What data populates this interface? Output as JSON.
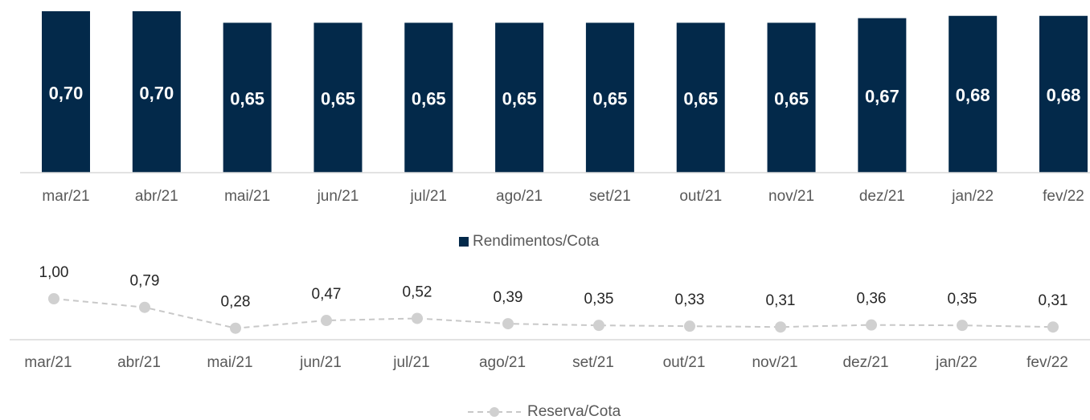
{
  "chart_data": [
    {
      "type": "bar",
      "categories": [
        "mar/21",
        "abr/21",
        "mai/21",
        "jun/21",
        "jul/21",
        "ago/21",
        "set/21",
        "out/21",
        "nov/21",
        "dez/21",
        "jan/22",
        "fev/22"
      ],
      "series": [
        {
          "name": "Rendimentos/Cota",
          "color": "#03294a",
          "values": [
            0.7,
            0.7,
            0.65,
            0.65,
            0.65,
            0.65,
            0.65,
            0.65,
            0.65,
            0.67,
            0.68,
            0.68
          ],
          "value_labels": [
            "0,70",
            "0,70",
            "0,65",
            "0,65",
            "0,65",
            "0,65",
            "0,65",
            "0,65",
            "0,65",
            "0,67",
            "0,68",
            "0,68"
          ]
        }
      ]
    },
    {
      "type": "line",
      "categories": [
        "mar/21",
        "abr/21",
        "mai/21",
        "jun/21",
        "jul/21",
        "ago/21",
        "set/21",
        "out/21",
        "nov/21",
        "dez/21",
        "jan/22",
        "fev/22"
      ],
      "series": [
        {
          "name": "Reserva/Cota",
          "color": "#c8c8c8",
          "values": [
            1.0,
            0.79,
            0.28,
            0.47,
            0.52,
            0.39,
            0.35,
            0.33,
            0.31,
            0.36,
            0.35,
            0.31
          ],
          "value_labels": [
            "1,00",
            "0,79",
            "0,28",
            "0,47",
            "0,52",
            "0,39",
            "0,35",
            "0,33",
            "0,31",
            "0,36",
            "0,35",
            "0,31"
          ]
        }
      ]
    }
  ]
}
